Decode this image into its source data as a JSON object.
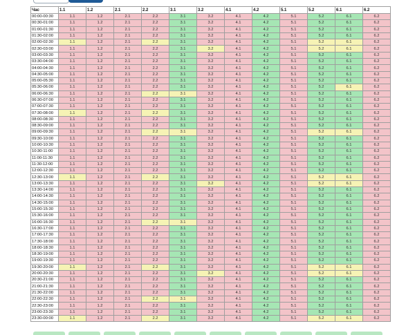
{
  "columns": [
    "Час",
    "1.1",
    "1.2",
    "2.1",
    "2.2",
    "3.1",
    "3.2",
    "4.1",
    "4.2",
    "5.1",
    "5.2",
    "6.1",
    "6.2"
  ],
  "groups": [
    "1.1",
    "1.2",
    "2.1",
    "2.2",
    "3.1",
    "3.2",
    "4.1",
    "4.2",
    "5.1",
    "5.2",
    "6.1",
    "6.2"
  ],
  "times": [
    "00:00-00:30",
    "00:30-01:00",
    "01:00-01:30",
    "01:30-02:00",
    "02:00-02:30",
    "02:30-03:00",
    "03:00-03:30",
    "03:30-04:00",
    "04:00-04:30",
    "04:30-05:00",
    "05:00-05:30",
    "05:30-06:00",
    "06:00-06:30",
    "06:30-07:00",
    "07:00-07:30",
    "07:30-08:00",
    "08:00-08:30",
    "08:30-09:00",
    "09:00-09:30",
    "09:30-10:00",
    "10:00-10:30",
    "10:30-11:00",
    "11:00-11:30",
    "11:30-12:00",
    "12:00-12:30",
    "12:30-13:00",
    "13:00-13:30",
    "13:30-14:00",
    "14:00-14:30",
    "14:30-15:00",
    "15:00-15:30",
    "15:30-16:00",
    "16:00-16:30",
    "16:30-17:00",
    "17:00-17:30",
    "17:30-18:00",
    "18:00-18:30",
    "18:30-19:00",
    "19:00-19:30",
    "19:30-20:00",
    "20:00-20:30",
    "20:30-21:00",
    "21:00-21:30",
    "21:30-22:00",
    "22:00-22:30",
    "22:30-23:00",
    "23:00-23:30",
    "23:30-00:00"
  ],
  "status": [
    "rggrgrrgrggr",
    "rggrgrrgrggr",
    "rggrgrrgrggr",
    "rggrgrrgrggr",
    "yggygrrgrggr",
    "rggrgyrgryyr",
    "rggrgrrgrggr",
    "rggrgrrgrggr",
    "rggrgrrgrggr",
    "rggrgrrgrggr",
    "rggrgrrgrggr",
    "rggrgrrgrgyr",
    "rggrgrrgrggr",
    "rggrgrrgrggr",
    "rggrgrrgrggr",
    "rggrgrrgrggr",
    "rggrgrrgrggr",
    "rggrgrrgrggr",
    "rggrgrrgrggr",
    "rggrgrrgrggr",
    "rggrgrrgrggr",
    "rggrgrrgrggr",
    "rggrgrrgrggr",
    "rggrgrrgrggr",
    "rggrgrrgrggr",
    "rggrgrrgrggr",
    "rggrgrrgrggr",
    "rggrgrrgrggr",
    "rggrgrrgrggr",
    "rggrgrrgrggr",
    "rggrgrrgrggr",
    "rggrgrrgrggr",
    "rggrgrrgrggr",
    "rggrgrrgrggr",
    "rggrgrrgrggr",
    "rggrgrrgrggr",
    "rggrgrrgrggr",
    "rggrgrrgrggr",
    "rggrgrrgrggr",
    "rggrgrrgrggr",
    "rggrgrrgrggr",
    "rggrgrrgrggr",
    "rggrgrrgrggr",
    "rggrgrrgrggr",
    "rggrgrrgrggr",
    "rggrgrrgrggr",
    "rggrgrrgrggr",
    "rggrgrrgrggr"
  ],
  "status_exact": [
    "rrrrgrrgrggr",
    "rrrrgrrgrggr",
    "rrrrgrrgrggr",
    "rrrrgrrgrggr",
    "yrrygrrgryyr",
    "rrrrgyrgryyr",
    "rrrrgrrgrggr",
    "rrrrgrrgrggr",
    "rrrrgrrgrggr",
    "rrrrgrrgrggr",
    "rrrrgrrgrggr",
    "rrrrgrrgrgyr",
    "rrryyrrgrggr",
    "rrrrgrrgrggr",
    "rrrrgrrgrggr",
    "yrrygrrgrggr",
    "rrrrgrrgrggr",
    "rrrrgrrgrggr",
    "rrryyrrgryyr",
    "rrrrgrrgrggr",
    "rrrrgrrgrggr",
    "rrrrgrrgrggr",
    "rrrrgrrgrggr",
    "rrrrgrrgrggr",
    "rrrrgrrgrggr",
    "yrrygrrgryyr",
    "rrrrgyrgryyr",
    "rrrrgrrgrggr",
    "rrrrgrrgrggr",
    "rrrrgrrgrggr",
    "rrrrgrrgrggr",
    "rrrrgrrgrggr",
    "rrryyrrgrggr",
    "rrrrgrrgrggr",
    "rrrrgrrgrggr",
    "rrrrgrrgrggr",
    "rrrrgrrgrggr",
    "rrrrgrrgrggr",
    "rrrrgrrgrggr",
    "yrrygrrgryyr",
    "rrrrgyrgryyr",
    "rrrrgrrgrggr",
    "rrrrgrrgrggr",
    "rrrrgrrgrggr",
    "rrryyrrgrggr",
    "rrrrgrrgrggr",
    "rrrrgrrgrggr",
    "yrrygrrgryyr"
  ],
  "colors": {
    "g": "#a6e6b4",
    "r": "#f3c4c9",
    "y": "#f6f3b5"
  },
  "tabs": [
    "",
    ""
  ],
  "buttons": [
    "",
    "",
    "",
    "",
    "",
    "",
    "",
    "",
    "",
    ""
  ]
}
